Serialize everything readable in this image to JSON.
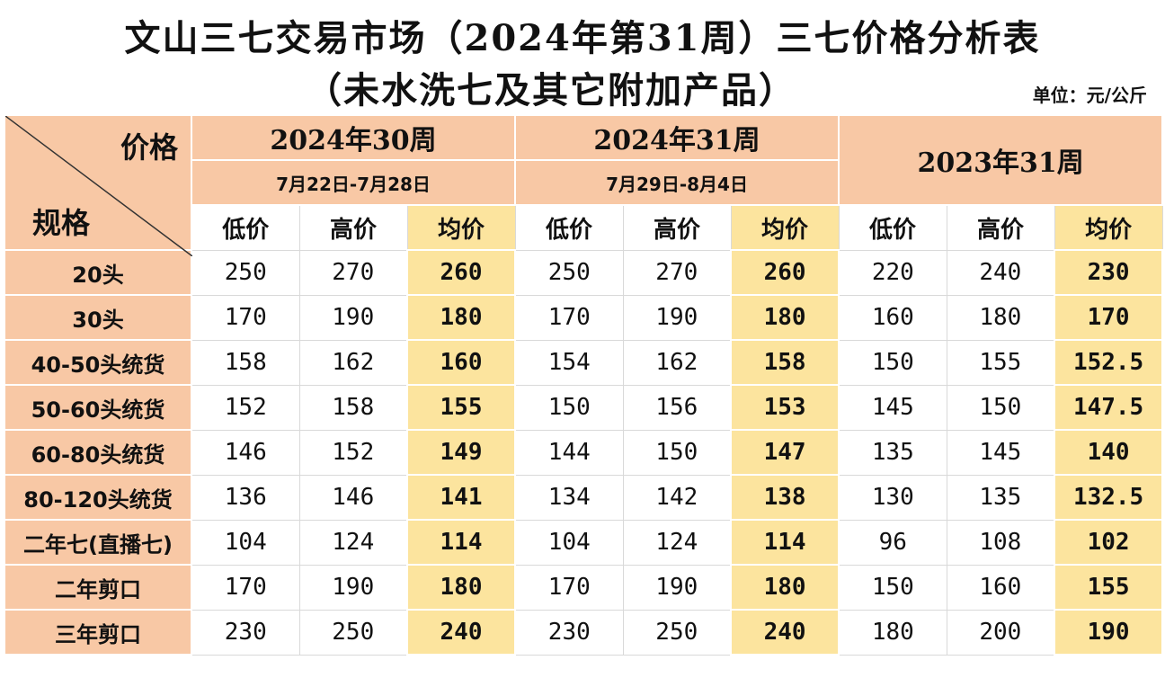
{
  "title": "文山三七交易市场（2024年第31周）三七价格分析表",
  "subtitle": "（未水洗七及其它附加产品）",
  "unit": "单位：元/公斤",
  "corner": {
    "top": "价格",
    "bottom": "规格"
  },
  "groups": [
    {
      "week": "2024年30周",
      "dates": "7月22日-7月28日"
    },
    {
      "week": "2024年31周",
      "dates": "7月29日-8月4日"
    },
    {
      "week": "2023年31周"
    }
  ],
  "columns": [
    "低价",
    "高价",
    "均价"
  ],
  "rows": [
    {
      "spec": "20头",
      "values": [
        "250",
        "270",
        "260",
        "250",
        "270",
        "260",
        "220",
        "240",
        "230"
      ]
    },
    {
      "spec": "30头",
      "values": [
        "170",
        "190",
        "180",
        "170",
        "190",
        "180",
        "160",
        "180",
        "170"
      ]
    },
    {
      "spec": "40-50头统货",
      "values": [
        "158",
        "162",
        "160",
        "154",
        "162",
        "158",
        "150",
        "155",
        "152.5"
      ]
    },
    {
      "spec": "50-60头统货",
      "values": [
        "152",
        "158",
        "155",
        "150",
        "156",
        "153",
        "145",
        "150",
        "147.5"
      ]
    },
    {
      "spec": "60-80头统货",
      "values": [
        "146",
        "152",
        "149",
        "144",
        "150",
        "147",
        "135",
        "145",
        "140"
      ]
    },
    {
      "spec": "80-120头统货",
      "values": [
        "136",
        "146",
        "141",
        "134",
        "142",
        "138",
        "130",
        "135",
        "132.5"
      ]
    },
    {
      "spec": "二年七(直播七)",
      "values": [
        "104",
        "124",
        "114",
        "104",
        "124",
        "114",
        "96",
        "108",
        "102"
      ]
    },
    {
      "spec": "二年剪口",
      "values": [
        "170",
        "190",
        "180",
        "170",
        "190",
        "180",
        "150",
        "160",
        "155"
      ]
    },
    {
      "spec": "三年剪口",
      "values": [
        "230",
        "250",
        "240",
        "230",
        "250",
        "240",
        "180",
        "200",
        "190"
      ]
    }
  ],
  "colors": {
    "header_bg": "#f8c8a5",
    "avg_bg": "#fce49e"
  }
}
